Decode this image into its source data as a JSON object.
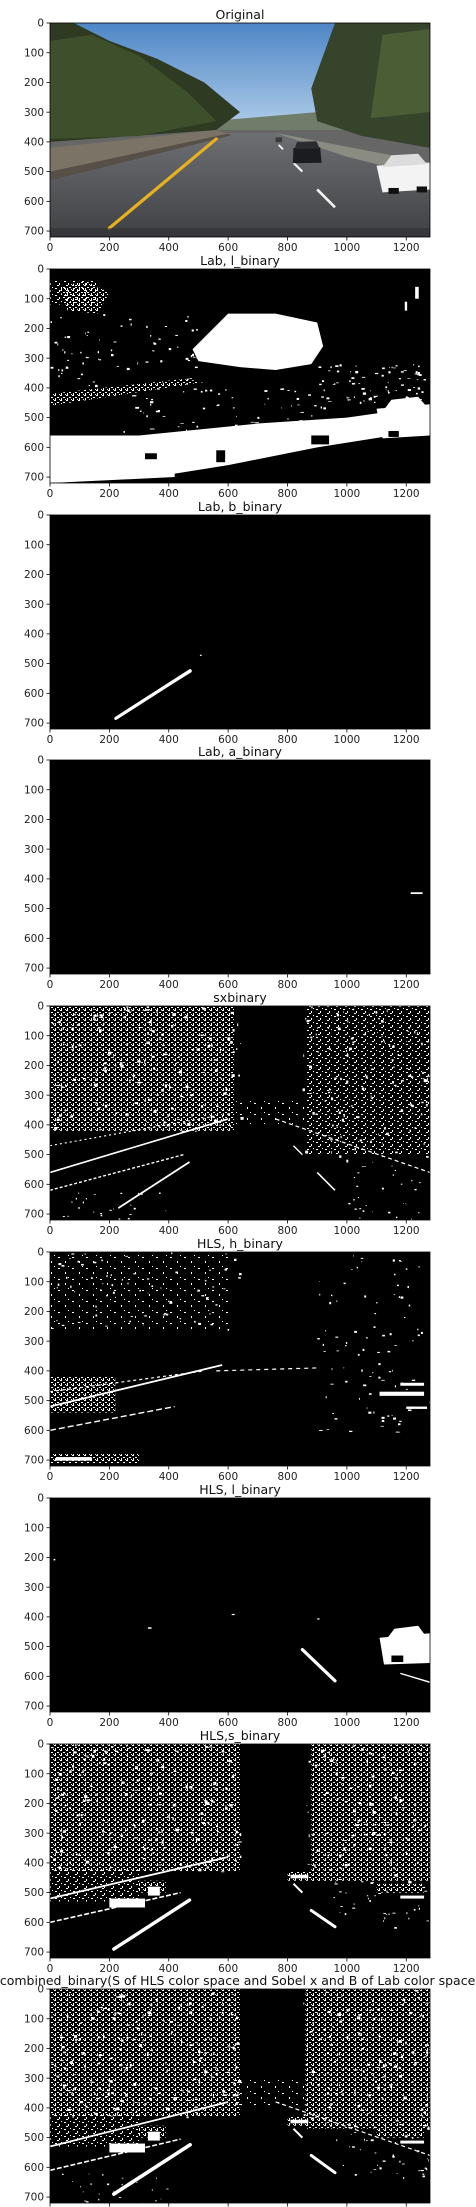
{
  "figure": {
    "panels": [
      {
        "key": "original",
        "title": "Original",
        "kind": "photo"
      },
      {
        "key": "lab_l",
        "title": "Lab, l_binary",
        "kind": "lab_l"
      },
      {
        "key": "lab_b",
        "title": "Lab, b_binary",
        "kind": "lab_b"
      },
      {
        "key": "lab_a",
        "title": "Lab, a_binary",
        "kind": "lab_a"
      },
      {
        "key": "sobel_x",
        "title": "sxbinary",
        "kind": "sobel"
      },
      {
        "key": "hls_h",
        "title": "HLS, h_binary",
        "kind": "hls_h"
      },
      {
        "key": "hls_l",
        "title": "HLS, l_binary",
        "kind": "hls_l"
      },
      {
        "key": "hls_s",
        "title": "HLS,s_binary",
        "kind": "hls_s"
      },
      {
        "key": "combined",
        "title": "combined_binary(S of HLS color space and Sobel x and B of Lab color space)",
        "kind": "combined"
      }
    ],
    "x_ticks": [
      "0",
      "200",
      "400",
      "600",
      "800",
      "1000",
      "1200"
    ],
    "y_ticks": [
      "0",
      "100",
      "200",
      "300",
      "400",
      "500",
      "600",
      "700"
    ],
    "x_tick_values": [
      0,
      200,
      400,
      600,
      800,
      1000,
      1200
    ],
    "y_tick_values": [
      0,
      100,
      200,
      300,
      400,
      500,
      600,
      700
    ],
    "image_width": 1280,
    "image_height": 720
  }
}
